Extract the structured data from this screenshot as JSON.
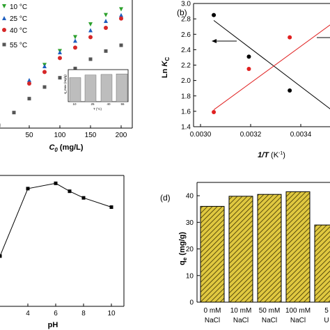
{
  "chart_data": [
    {
      "panel": "a",
      "type": "scatter",
      "title": "",
      "xlabel": "C₀ (mg/L)",
      "ylabel": "",
      "xlim": [
        0,
        210
      ],
      "x_ticks": [
        "50",
        "100",
        "150",
        "200"
      ],
      "grid": false,
      "legend_position": "top-left",
      "series": [
        {
          "name": "10 °C",
          "color": "#2ca02c",
          "marker": "triangle-down",
          "x": [
            75,
            100,
            125,
            150,
            175,
            200
          ],
          "y": [
            64,
            76,
            88,
            99,
            107,
            112
          ]
        },
        {
          "name": "25 °C",
          "color": "#1f5fbf",
          "marker": "triangle-up",
          "x": [
            50,
            75,
            100,
            125,
            150,
            175,
            200
          ],
          "y": [
            51,
            63,
            75,
            85,
            94,
            102,
            107
          ]
        },
        {
          "name": "40 °C",
          "color": "#d62728",
          "marker": "circle",
          "x": [
            50,
            75,
            100,
            125,
            150,
            175,
            200
          ],
          "y": [
            48,
            58,
            70,
            79,
            88,
            96,
            104
          ]
        },
        {
          "name": "55 °C",
          "color": "#555555",
          "marker": "square",
          "x": [
            0,
            25,
            50,
            75,
            100,
            125,
            150,
            175,
            200
          ],
          "y": [
            12,
            23,
            35,
            45,
            53,
            61,
            69,
            76,
            81
          ]
        }
      ],
      "inset": {
        "type": "bar",
        "x_tick_labels": [
          "10",
          "25",
          "40",
          "55"
        ],
        "xlabel": "T (°C)",
        "ylabel": "q_max (mg/g)",
        "values": [
          105,
          110,
          111,
          112
        ],
        "ylim": [
          60,
          120
        ]
      }
    },
    {
      "panel": "b",
      "type": "scatter",
      "label": "(b)",
      "xlabel": "1/T (K⁻¹)",
      "ylabel": "Ln K_C",
      "xlim": [
        0.003,
        0.00355
      ],
      "ylim": [
        1.4,
        3.0
      ],
      "x_ticks": [
        "0.0030",
        "0.0032",
        "0.0034"
      ],
      "y_ticks": [
        "1.4",
        "1.6",
        "1.8",
        "2.0",
        "2.2",
        "2.4",
        "2.6",
        "2.8",
        "3.0"
      ],
      "grid": false,
      "series": [
        {
          "name": "",
          "color": "#000000",
          "marker": "circle",
          "x": [
            0.003053,
            0.003193,
            0.003356
          ],
          "y": [
            2.85,
            2.31,
            1.87
          ]
        },
        {
          "name": "",
          "color": "#e02020",
          "marker": "circle",
          "x": [
            0.003053,
            0.003193,
            0.003356
          ],
          "y": [
            1.59,
            2.15,
            2.56
          ]
        }
      ],
      "fit_lines": [
        {
          "color": "#000000",
          "x": [
            0.003053,
            0.00355
          ],
          "y": [
            2.78,
            1.55
          ]
        },
        {
          "color": "#e02020",
          "x": [
            0.003053,
            0.00355
          ],
          "y": [
            1.62,
            2.8
          ]
        }
      ]
    },
    {
      "panel": "c",
      "type": "line",
      "xlabel": "pH",
      "ylabel": "",
      "xlim": [
        2,
        10.8
      ],
      "x_ticks": [
        "4",
        "6",
        "8",
        "10"
      ],
      "grid": false,
      "series": [
        {
          "name": "",
          "color": "#000000",
          "marker": "square",
          "x": [
            2,
            4,
            6,
            7,
            8,
            10
          ],
          "y": [
            38,
            89,
            93,
            87,
            82,
            75
          ]
        }
      ]
    },
    {
      "panel": "d",
      "type": "bar",
      "label": "(d)",
      "xlabel": "",
      "ylabel": "q_e (mg/g)",
      "ylim": [
        0,
        45
      ],
      "y_ticks": [
        "0",
        "10",
        "20",
        "30",
        "40"
      ],
      "categories": [
        [
          "0 mM",
          "NaCl"
        ],
        [
          "10 mM",
          "NaCl"
        ],
        [
          "50 mM",
          "NaCl"
        ],
        [
          "100 mM",
          "NaCl"
        ],
        [
          "5",
          "U"
        ]
      ],
      "values": [
        36,
        39.8,
        40.5,
        41.5,
        29
      ],
      "bar_color": "#e0c840",
      "hatch": "diagonal"
    }
  ],
  "legend_a": [
    "10 °C",
    "25 °C",
    "40 °C",
    "55 °C"
  ],
  "inset_ticks": [
    "10",
    "25",
    "40",
    "55"
  ],
  "inset_xlabel": "T (°C)",
  "inset_ylabel": "q_max (mg/g)",
  "xlabel_a_main": "C",
  "xlabel_a_sub": "0",
  "xlabel_a_unit": " (mg/L)",
  "label_b": "(b)",
  "ylabel_b_main": "Ln ",
  "ylabel_b_K": "K",
  "ylabel_b_sub": "C",
  "xlabel_b_main": "1/T",
  "xlabel_b_unit": " (K",
  "xlabel_b_sup": "-1",
  "xlabel_b_close": ")",
  "xlabel_c": "pH",
  "label_d": "(d)",
  "ylabel_d_main": "q",
  "ylabel_d_sub": "e",
  "ylabel_d_unit": " (mg/g)"
}
